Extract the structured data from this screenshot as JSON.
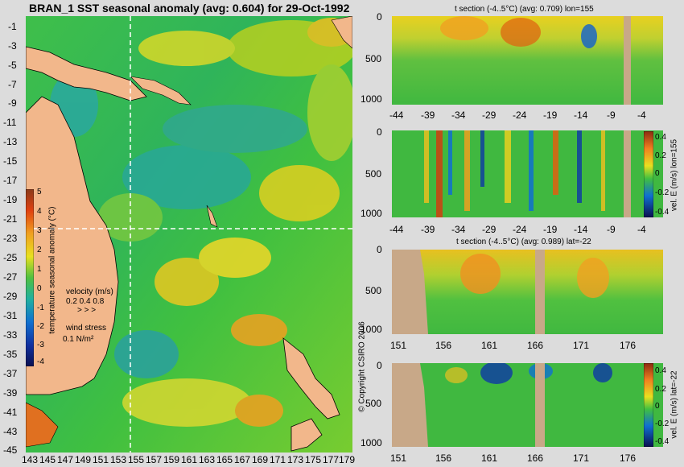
{
  "main_map": {
    "title": "BRAN_1 SST seasonal anomaly (avg: 0.604) for 29-Oct-1992",
    "lat_ticks": [
      "-1",
      "-3",
      "-5",
      "-7",
      "-9",
      "-11",
      "-13",
      "-15",
      "-17",
      "-19",
      "-21",
      "-23",
      "-25",
      "-27",
      "-29",
      "-31",
      "-33",
      "-35",
      "-37",
      "-39",
      "-41",
      "-43",
      "-45"
    ],
    "lon_ticks": [
      "143",
      "145",
      "147",
      "149",
      "151",
      "153",
      "155",
      "157",
      "159",
      "161",
      "163",
      "165",
      "167",
      "169",
      "171",
      "173",
      "175",
      "177",
      "179"
    ],
    "colorbar": {
      "ticks": [
        "5",
        "4",
        "3",
        "2",
        "1",
        "0",
        "-1",
        "-2",
        "-3",
        "-4"
      ],
      "label": "temperature seasonal anomaly (°C)"
    },
    "velocity_legend": {
      "title": "velocity (m/s)",
      "values": "0.2 0.4 0.8"
    },
    "wind_legend": {
      "title": "wind stress",
      "value": "0.1 N/m²"
    },
    "copyright": "© Copyright CSIRO 2006"
  },
  "panels": [
    {
      "title": "t section (-4..5°C) (avg: 0.709) lon=155",
      "y_ticks": [
        "0",
        "500",
        "1000"
      ],
      "x_ticks": [
        "-44",
        "-39",
        "-34",
        "-29",
        "-24",
        "-19",
        "-14",
        "-9",
        "-4"
      ]
    },
    {
      "title": "",
      "y_ticks": [
        "0",
        "500",
        "1000"
      ],
      "x_ticks": [
        "-44",
        "-39",
        "-34",
        "-29",
        "-24",
        "-19",
        "-14",
        "-9",
        "-4"
      ],
      "side_label": "vel. E (m/s) lon=155",
      "colorbar_ticks": [
        "0.4",
        "0.2",
        "0",
        "-0.2",
        "-0.4"
      ]
    },
    {
      "title": "t section (-4..5°C) (avg: 0.989) lat=-22",
      "y_ticks": [
        "0",
        "500",
        "1000"
      ],
      "x_ticks": [
        "151",
        "156",
        "161",
        "166",
        "171",
        "176"
      ]
    },
    {
      "title": "",
      "y_ticks": [
        "0",
        "500",
        "1000"
      ],
      "x_ticks": [
        "151",
        "156",
        "161",
        "166",
        "171",
        "176"
      ],
      "side_label": "vel. E (m/s) lat=-22",
      "colorbar_ticks": [
        "0.4",
        "0.2",
        "0",
        "-0.2",
        "-0.4"
      ]
    }
  ],
  "chart_data": [
    {
      "type": "heatmap",
      "title": "BRAN_1 SST seasonal anomaly (avg: 0.604) for 29-Oct-1992",
      "xlabel": "",
      "ylabel": "",
      "xlim": [
        143,
        180
      ],
      "ylim": [
        -45,
        0
      ],
      "colorbar_range": [
        -4,
        5
      ],
      "colorbar_label": "temperature seasonal anomaly (°C)",
      "avg": 0.604
    },
    {
      "type": "heatmap",
      "title": "t section (-4..5°C) (avg: 0.709) lon=155",
      "xlim": [
        -45,
        -1
      ],
      "ylim": [
        1050,
        0
      ],
      "color_range": [
        -4,
        5
      ],
      "avg": 0.709
    },
    {
      "type": "heatmap",
      "title": "",
      "xlim": [
        -45,
        -1
      ],
      "ylim": [
        1050,
        0
      ],
      "color_range": [
        -0.4,
        0.4
      ],
      "colorbar_label": "vel. E (m/s) lon=155"
    },
    {
      "type": "heatmap",
      "title": "t section (-4..5°C) (avg: 0.989) lat=-22",
      "xlim": [
        150,
        180
      ],
      "ylim": [
        1050,
        0
      ],
      "color_range": [
        -4,
        5
      ],
      "avg": 0.989
    },
    {
      "type": "heatmap",
      "title": "",
      "xlim": [
        150,
        180
      ],
      "ylim": [
        1050,
        0
      ],
      "color_range": [
        -0.4,
        0.4
      ],
      "colorbar_label": "vel. E (m/s) lat=-22"
    }
  ]
}
